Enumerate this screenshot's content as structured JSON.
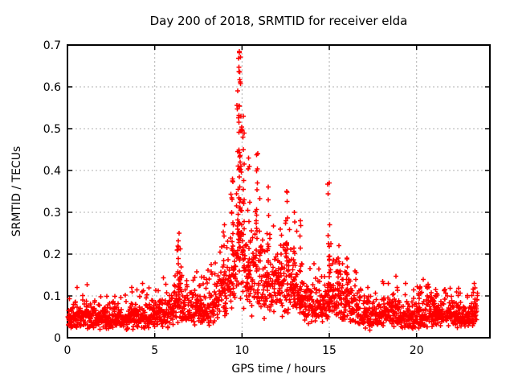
{
  "figure": {
    "background": "#ffffff"
  },
  "chart_data": {
    "type": "scatter",
    "title": "Day 200 of 2018, SRMTID for receiver elda",
    "xlabel": "GPS time / hours",
    "ylabel": "SRMTID / TECUs",
    "xlim": [
      0,
      24.2
    ],
    "ylim": [
      0,
      0.7
    ],
    "xticks": [
      0,
      5,
      10,
      15,
      20
    ],
    "yticks": [
      0,
      0.1,
      0.2,
      0.3,
      0.4,
      0.5,
      0.6,
      0.7
    ],
    "grid": true,
    "grid_style": "dotted",
    "legend": "none",
    "marker": "plus",
    "marker_color": "#ff0000",
    "marker_size_px": 7,
    "grid_color": "#b0b0b0",
    "border_color": "#000000",
    "text_color": "#000000",
    "x_data_range": [
      0.02,
      23.5
    ],
    "n_baseline_points": 2100,
    "noise_log_sd": 0.37,
    "seed": 20180200,
    "baseline_envelope": {
      "hours": [
        0,
        0.5,
        1,
        1.5,
        2,
        2.5,
        3,
        3.5,
        4,
        4.5,
        5,
        5.5,
        6,
        6.3,
        6.45,
        6.6,
        7,
        7.5,
        8,
        8.5,
        9,
        9.3,
        9.6,
        9.85,
        10.1,
        10.4,
        10.7,
        11,
        11.3,
        11.6,
        12,
        12.3,
        12.55,
        12.8,
        13,
        13.3,
        13.6,
        14,
        14.4,
        14.8,
        15,
        15.3,
        15.6,
        16,
        16.3,
        16.6,
        17,
        17.5,
        18,
        18.4,
        18.8,
        19.2,
        19.6,
        20,
        20.4,
        20.8,
        21.2,
        21.6,
        22,
        22.4,
        22.8,
        23.2,
        23.5
      ],
      "mean_tecu": [
        0.048,
        0.05,
        0.052,
        0.046,
        0.044,
        0.046,
        0.044,
        0.046,
        0.05,
        0.05,
        0.052,
        0.055,
        0.065,
        0.085,
        0.095,
        0.075,
        0.06,
        0.066,
        0.07,
        0.088,
        0.112,
        0.13,
        0.165,
        0.23,
        0.195,
        0.16,
        0.15,
        0.15,
        0.14,
        0.13,
        0.12,
        0.13,
        0.148,
        0.128,
        0.12,
        0.11,
        0.09,
        0.08,
        0.075,
        0.085,
        0.105,
        0.1,
        0.098,
        0.092,
        0.078,
        0.065,
        0.058,
        0.052,
        0.058,
        0.064,
        0.055,
        0.05,
        0.048,
        0.052,
        0.058,
        0.06,
        0.058,
        0.055,
        0.052,
        0.05,
        0.055,
        0.058,
        0.06
      ]
    },
    "peaks": [
      {
        "t": 6.4,
        "sd": 0.08,
        "max": 0.25,
        "n": 20
      },
      {
        "t": 7.6,
        "sd": 0.05,
        "max": 0.125,
        "n": 8
      },
      {
        "t": 9.0,
        "sd": 0.06,
        "max": 0.27,
        "n": 12
      },
      {
        "t": 9.45,
        "sd": 0.06,
        "max": 0.38,
        "n": 16
      },
      {
        "t": 9.85,
        "sd": 0.07,
        "max": 0.685,
        "n": 55
      },
      {
        "t": 10.08,
        "sd": 0.05,
        "max": 0.53,
        "n": 18
      },
      {
        "t": 10.38,
        "sd": 0.05,
        "max": 0.43,
        "n": 12
      },
      {
        "t": 10.9,
        "sd": 0.06,
        "max": 0.44,
        "n": 14
      },
      {
        "t": 11.5,
        "sd": 0.05,
        "max": 0.33,
        "n": 10
      },
      {
        "t": 12.2,
        "sd": 0.05,
        "max": 0.26,
        "n": 8
      },
      {
        "t": 12.55,
        "sd": 0.05,
        "max": 0.35,
        "n": 14
      },
      {
        "t": 13.0,
        "sd": 0.05,
        "max": 0.3,
        "n": 10
      },
      {
        "t": 13.35,
        "sd": 0.04,
        "max": 0.28,
        "n": 8
      },
      {
        "t": 15.0,
        "sd": 0.045,
        "max": 0.37,
        "n": 20
      },
      {
        "t": 15.55,
        "sd": 0.06,
        "max": 0.22,
        "n": 10
      },
      {
        "t": 16.0,
        "sd": 0.07,
        "max": 0.19,
        "n": 10
      },
      {
        "t": 17.2,
        "sd": 0.07,
        "max": 0.12,
        "n": 7
      },
      {
        "t": 18.1,
        "sd": 0.08,
        "max": 0.13,
        "n": 8
      },
      {
        "t": 20.2,
        "sd": 0.08,
        "max": 0.12,
        "n": 7
      },
      {
        "t": 21.1,
        "sd": 0.08,
        "max": 0.115,
        "n": 7
      },
      {
        "t": 22.3,
        "sd": 0.08,
        "max": 0.11,
        "n": 6
      },
      {
        "t": 23.3,
        "sd": 0.07,
        "max": 0.13,
        "n": 8
      }
    ]
  }
}
